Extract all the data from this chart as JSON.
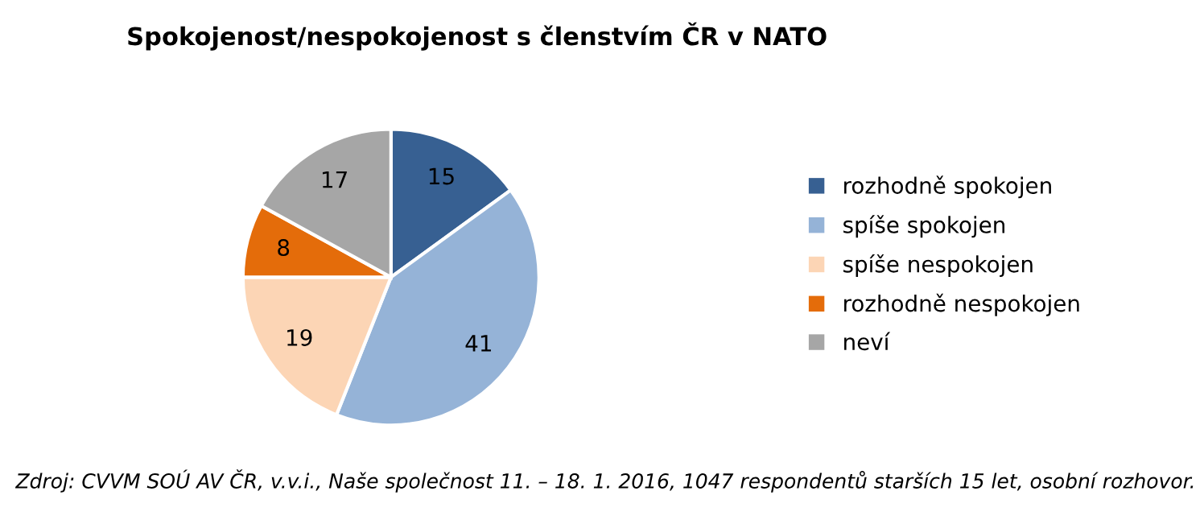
{
  "chart_data": {
    "type": "pie",
    "title": "Spokojenost/nespokojenost s členstvím ČR v NATO",
    "categories": [
      "rozhodně spokojen",
      "spíše spokojen",
      "spíše nespokojen",
      "rozhodně nespokojen",
      "neví"
    ],
    "values": [
      15,
      41,
      19,
      8,
      17
    ],
    "colors": [
      "#376092",
      "#95b3d7",
      "#fcd5b5",
      "#e46c0a",
      "#a6a6a6"
    ],
    "data_labels": true,
    "legend": "right",
    "annotations": [
      "Zdroj: CVVM SOÚ AV ČR, v.v.i., Naše společnost 11. – 18. 1. 2016, 1047 respondentů starších 15 let, osobní rozhovor."
    ]
  }
}
